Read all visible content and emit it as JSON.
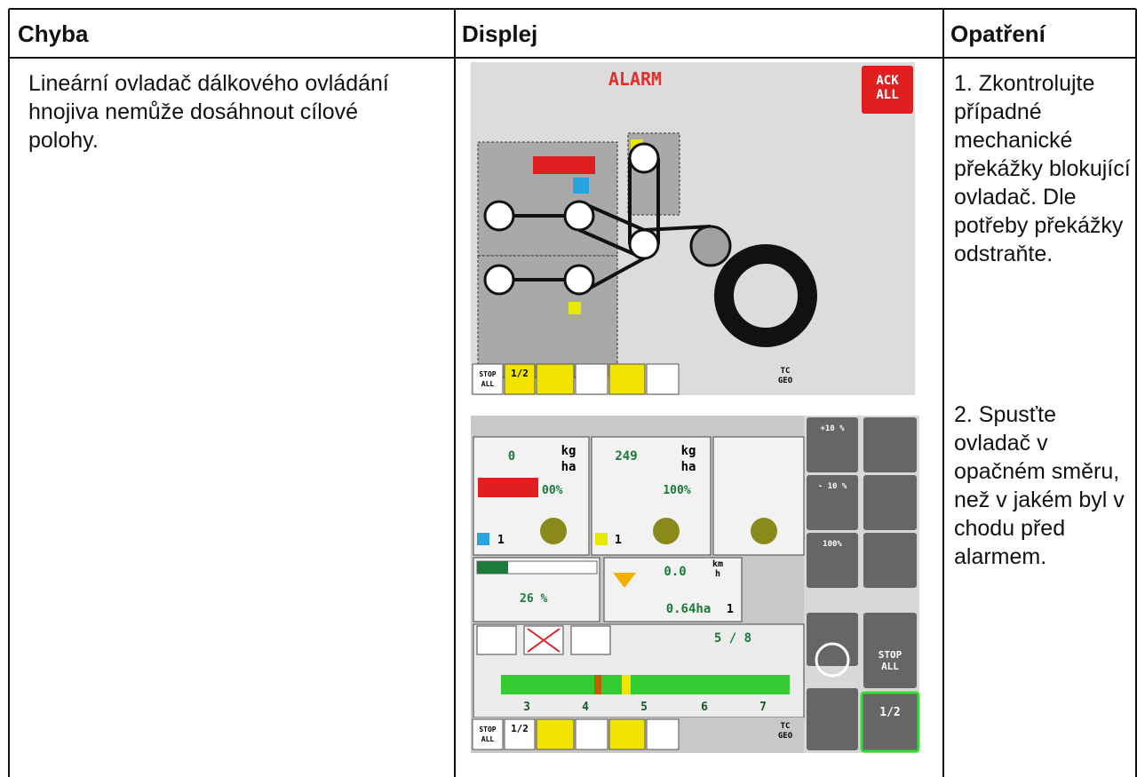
{
  "table": {
    "headers": [
      "Chyba",
      "Displej",
      "Opatření"
    ],
    "rows": [
      {
        "fault": "Lineární ovladač dálkového ovládání hnojiva nemůže dosáhnout cílové polohy.",
        "actions": [
          "1. Zkontrolujte případné mechanické překážky blokující ovladač. Dle potřeby překážky odstraňte.",
          "2. Spusťte ovladač v opačném směru, než v jakém byl v chodu před alarmem."
        ]
      }
    ]
  },
  "display": {
    "alarm": {
      "title": "ALARM",
      "ack": [
        "ACK",
        "ALL"
      ],
      "stop": [
        "STOP",
        "ALL"
      ],
      "half": "1/2",
      "tc": [
        "TC",
        "GEO"
      ]
    },
    "work": {
      "rate1": "0",
      "unit1": [
        "kg",
        "ha"
      ],
      "pct1": "00%",
      "count1": "1",
      "rate2": "249",
      "unit2": [
        "kg",
        "ha"
      ],
      "pct2": "100%",
      "count2": "1",
      "speed": "0.0",
      "speed_unit": [
        "km",
        "h"
      ],
      "level": "26 %",
      "area": "0.64ha",
      "area_idx": "1",
      "sections": "5 / 8",
      "section_labels": [
        "3",
        "4",
        "5",
        "6",
        "7"
      ],
      "plus": "+10 %",
      "minus": "- 10 %",
      "full": "100%",
      "stop_side": [
        "STOP",
        "ALL"
      ],
      "half_side": "1/2",
      "stop_bar": [
        "STOP",
        "ALL"
      ],
      "half_bar": "1/2",
      "tc": [
        "TC",
        "GEO"
      ]
    }
  }
}
